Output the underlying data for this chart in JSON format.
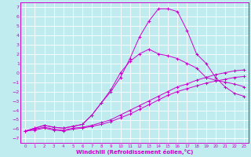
{
  "xlabel": "Windchill (Refroidissement éolien,°C)",
  "bg_color": "#c0ecf0",
  "grid_color": "#ffffff",
  "line_color": "#cc00cc",
  "xlim": [
    -0.5,
    23.5
  ],
  "ylim": [
    -7.5,
    7.5
  ],
  "xticks": [
    0,
    1,
    2,
    3,
    4,
    5,
    6,
    7,
    8,
    9,
    10,
    11,
    12,
    13,
    14,
    15,
    16,
    17,
    18,
    19,
    20,
    21,
    22,
    23
  ],
  "yticks": [
    -7,
    -6,
    -5,
    -4,
    -3,
    -2,
    -1,
    0,
    1,
    2,
    3,
    4,
    5,
    6,
    7
  ],
  "line1_x": [
    0,
    1,
    2,
    3,
    4,
    5,
    6,
    7,
    8,
    9,
    10,
    11,
    12,
    13,
    14,
    15,
    16,
    17,
    18,
    19,
    20,
    21,
    22,
    23
  ],
  "line1_y": [
    -6.2,
    -5.9,
    -5.6,
    -5.8,
    -5.9,
    -5.7,
    -5.5,
    -4.5,
    -3.2,
    -2.0,
    -0.5,
    1.5,
    3.8,
    5.5,
    6.8,
    6.8,
    6.5,
    4.5,
    2.0,
    1.0,
    -0.5,
    -1.5,
    -2.2,
    -2.5
  ],
  "line2_x": [
    0,
    1,
    2,
    3,
    4,
    5,
    6,
    7,
    8,
    9,
    10,
    11,
    12,
    13,
    14,
    15,
    16,
    17,
    18,
    19,
    20,
    21,
    22,
    23
  ],
  "line2_y": [
    -6.2,
    -5.9,
    -5.6,
    -5.8,
    -5.9,
    -5.7,
    -5.5,
    -4.5,
    -3.2,
    -1.8,
    0.0,
    1.2,
    2.0,
    2.5,
    2.0,
    1.8,
    1.5,
    1.0,
    0.5,
    -0.5,
    -0.8,
    -1.0,
    -1.2,
    -1.5
  ],
  "line3_x": [
    0,
    1,
    2,
    3,
    4,
    5,
    6,
    7,
    8,
    9,
    10,
    11,
    12,
    13,
    14,
    15,
    16,
    17,
    18,
    19,
    20,
    21,
    22,
    23
  ],
  "line3_y": [
    -6.2,
    -6.0,
    -5.8,
    -6.0,
    -6.1,
    -5.9,
    -5.8,
    -5.6,
    -5.3,
    -5.0,
    -4.5,
    -4.0,
    -3.5,
    -3.0,
    -2.5,
    -2.0,
    -1.5,
    -1.2,
    -0.8,
    -0.5,
    -0.2,
    0.0,
    0.2,
    0.3
  ],
  "line4_x": [
    0,
    1,
    2,
    3,
    4,
    5,
    6,
    7,
    8,
    9,
    10,
    11,
    12,
    13,
    14,
    15,
    16,
    17,
    18,
    19,
    20,
    21,
    22,
    23
  ],
  "line4_y": [
    -6.2,
    -6.1,
    -5.9,
    -6.1,
    -6.2,
    -6.0,
    -5.9,
    -5.7,
    -5.5,
    -5.2,
    -4.8,
    -4.4,
    -3.9,
    -3.4,
    -2.9,
    -2.4,
    -2.0,
    -1.7,
    -1.4,
    -1.1,
    -0.9,
    -0.7,
    -0.5,
    -0.4
  ]
}
